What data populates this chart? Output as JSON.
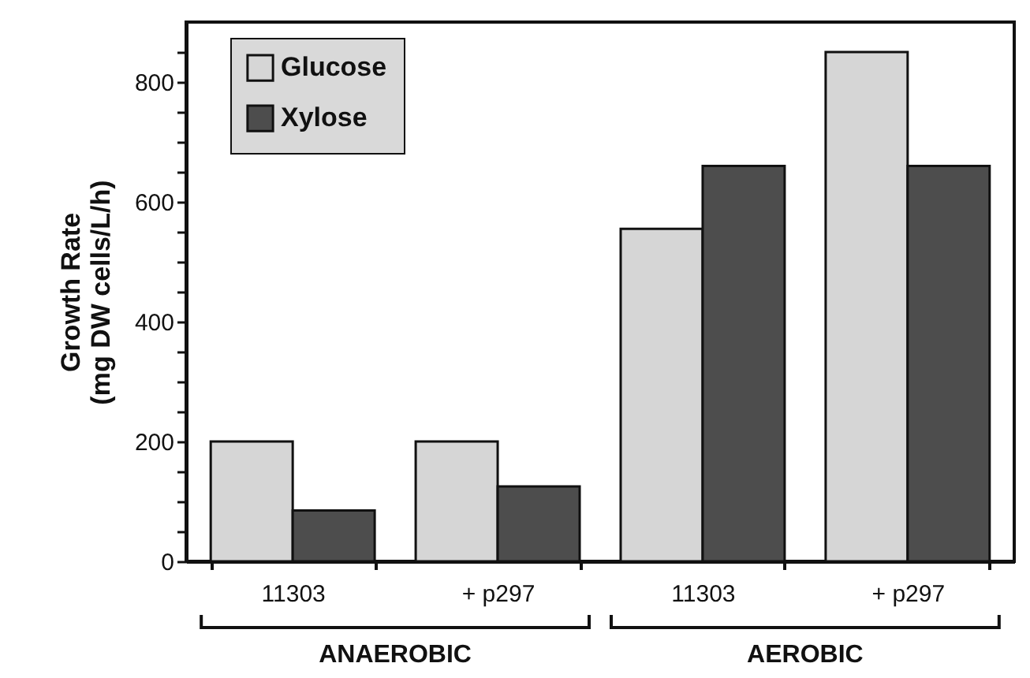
{
  "chart_data": {
    "type": "bar",
    "ylabel": "Growth Rate\n(mg DW cells/L/h)",
    "categories": [
      "11303",
      "+ p297",
      "11303",
      "+ p297"
    ],
    "series": [
      {
        "name": "Glucose",
        "color": "#d6d6d6",
        "values": [
          200,
          200,
          555,
          850
        ]
      },
      {
        "name": "Xylose",
        "color": "#4d4d4d",
        "values": [
          85,
          125,
          660,
          660
        ]
      }
    ],
    "ylim": [
      0,
      900
    ],
    "yticks": [
      0,
      {
        "value": 50,
        "label": null
      },
      {
        "value": 100,
        "label": null
      },
      {
        "value": 150,
        "label": null
      },
      200,
      {
        "value": 250,
        "label": null
      },
      {
        "value": 300,
        "label": null
      },
      {
        "value": 350,
        "label": null
      },
      400,
      {
        "value": 450,
        "label": null
      },
      {
        "value": 500,
        "label": null
      },
      {
        "value": 550,
        "label": null
      },
      600,
      {
        "value": 650,
        "label": null
      },
      {
        "value": 700,
        "label": null
      },
      {
        "value": 750,
        "label": null
      },
      800,
      {
        "value": 850,
        "label": null
      }
    ],
    "grid": false,
    "legend": "top left",
    "annotations": [
      "ANAEROBIC",
      "AEROBIC"
    ]
  }
}
